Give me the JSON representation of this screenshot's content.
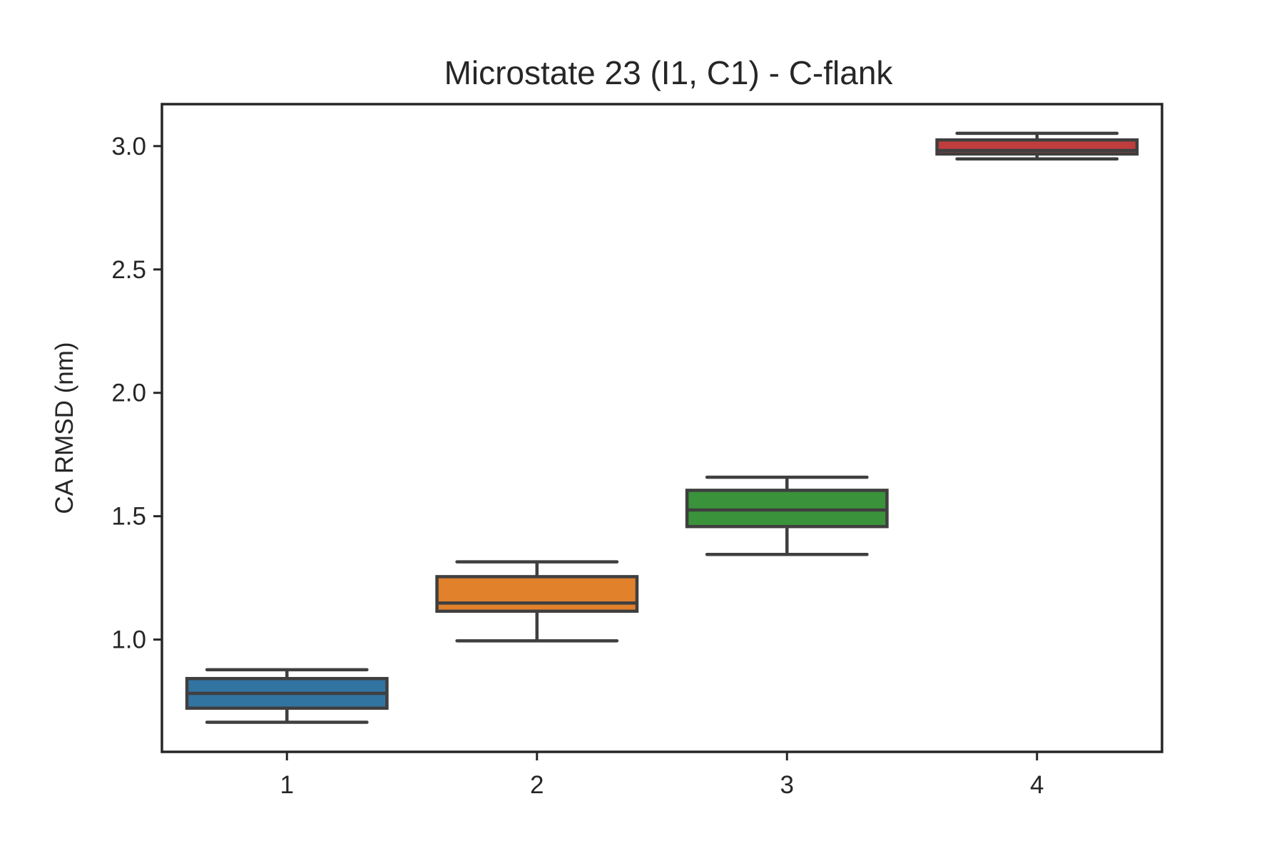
{
  "chart_data": {
    "type": "box",
    "title": "Microstate 23 (I1, C1) - C-flank",
    "xlabel": "",
    "ylabel": "CA RMSD (nm)",
    "categories": [
      "1",
      "2",
      "3",
      "4"
    ],
    "ylim": [
      0.545,
      3.17
    ],
    "y_ticks": [
      "1.0",
      "1.5",
      "2.0",
      "2.5",
      "3.0"
    ],
    "grid": false,
    "legend": "none",
    "boxes": [
      {
        "category": "1",
        "whisker_low": 0.665,
        "q1": 0.722,
        "median": 0.782,
        "q3": 0.842,
        "whisker_high": 0.878,
        "color": "#3274a1"
      },
      {
        "category": "2",
        "whisker_low": 0.995,
        "q1": 1.115,
        "median": 1.148,
        "q3": 1.255,
        "whisker_high": 1.315,
        "color": "#e1812c"
      },
      {
        "category": "3",
        "whisker_low": 1.345,
        "q1": 1.458,
        "median": 1.525,
        "q3": 1.605,
        "whisker_high": 1.658,
        "color": "#3a923a"
      },
      {
        "category": "4",
        "whisker_low": 2.948,
        "q1": 2.968,
        "median": 2.982,
        "q3": 3.025,
        "whisker_high": 3.052,
        "color": "#c03d3e"
      }
    ]
  }
}
